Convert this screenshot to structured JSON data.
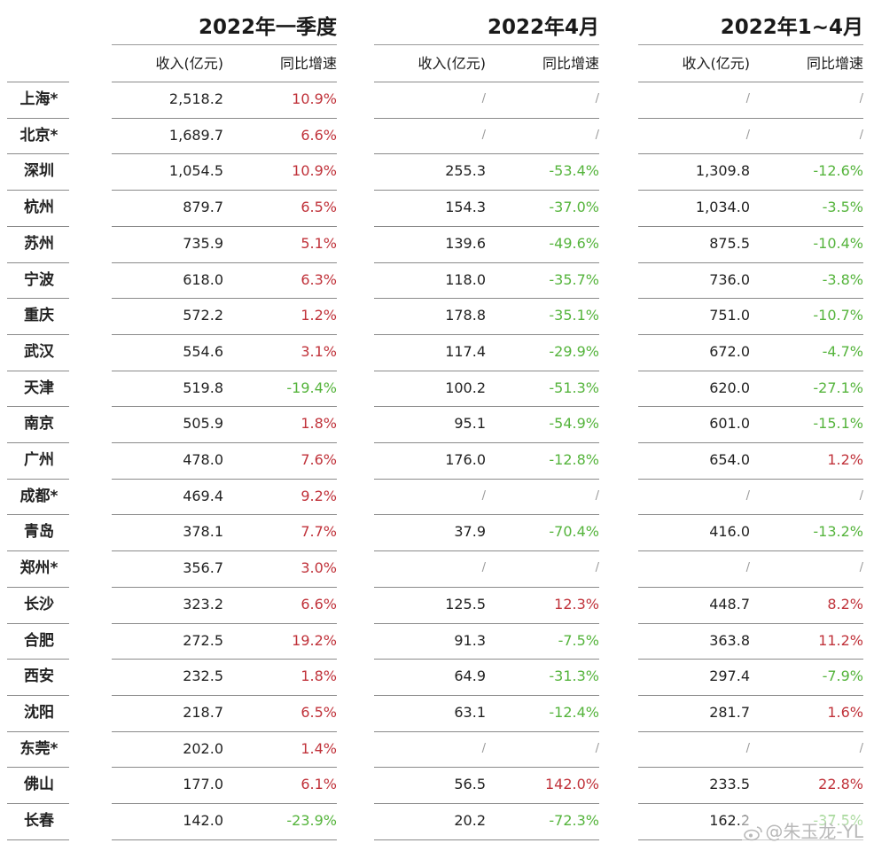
{
  "groups": [
    {
      "title": "2022年一季度",
      "col_income": "收入(亿元)",
      "col_growth": "同比增速"
    },
    {
      "title": "2022年4月",
      "col_income": "收入(亿元)",
      "col_growth": "同比增速"
    },
    {
      "title": "2022年1~4月",
      "col_income": "收入(亿元)",
      "col_growth": "同比增速"
    }
  ],
  "rows": [
    {
      "city": "上海*",
      "cells": [
        "2,518.2",
        "10.9%",
        "/",
        "/",
        "/",
        "/"
      ]
    },
    {
      "city": "北京*",
      "cells": [
        "1,689.7",
        "6.6%",
        "/",
        "/",
        "/",
        "/"
      ]
    },
    {
      "city": "深圳",
      "cells": [
        "1,054.5",
        "10.9%",
        "255.3",
        "-53.4%",
        "1,309.8",
        "-12.6%"
      ]
    },
    {
      "city": "杭州",
      "cells": [
        "879.7",
        "6.5%",
        "154.3",
        "-37.0%",
        "1,034.0",
        "-3.5%"
      ]
    },
    {
      "city": "苏州",
      "cells": [
        "735.9",
        "5.1%",
        "139.6",
        "-49.6%",
        "875.5",
        "-10.4%"
      ]
    },
    {
      "city": "宁波",
      "cells": [
        "618.0",
        "6.3%",
        "118.0",
        "-35.7%",
        "736.0",
        "-3.8%"
      ]
    },
    {
      "city": "重庆",
      "cells": [
        "572.2",
        "1.2%",
        "178.8",
        "-35.1%",
        "751.0",
        "-10.7%"
      ]
    },
    {
      "city": "武汉",
      "cells": [
        "554.6",
        "3.1%",
        "117.4",
        "-29.9%",
        "672.0",
        "-4.7%"
      ]
    },
    {
      "city": "天津",
      "cells": [
        "519.8",
        "-19.4%",
        "100.2",
        "-51.3%",
        "620.0",
        "-27.1%"
      ]
    },
    {
      "city": "南京",
      "cells": [
        "505.9",
        "1.8%",
        "95.1",
        "-54.9%",
        "601.0",
        "-15.1%"
      ]
    },
    {
      "city": "广州",
      "cells": [
        "478.0",
        "7.6%",
        "176.0",
        "-12.8%",
        "654.0",
        "1.2%"
      ]
    },
    {
      "city": "成都*",
      "cells": [
        "469.4",
        "9.2%",
        "/",
        "/",
        "/",
        "/"
      ]
    },
    {
      "city": "青岛",
      "cells": [
        "378.1",
        "7.7%",
        "37.9",
        "-70.4%",
        "416.0",
        "-13.2%"
      ]
    },
    {
      "city": "郑州*",
      "cells": [
        "356.7",
        "3.0%",
        "/",
        "/",
        "/",
        "/"
      ]
    },
    {
      "city": "长沙",
      "cells": [
        "323.2",
        "6.6%",
        "125.5",
        "12.3%",
        "448.7",
        "8.2%"
      ]
    },
    {
      "city": "合肥",
      "cells": [
        "272.5",
        "19.2%",
        "91.3",
        "-7.5%",
        "363.8",
        "11.2%"
      ]
    },
    {
      "city": "西安",
      "cells": [
        "232.5",
        "1.8%",
        "64.9",
        "-31.3%",
        "297.4",
        "-7.9%"
      ]
    },
    {
      "city": "沈阳",
      "cells": [
        "218.7",
        "6.5%",
        "63.1",
        "-12.4%",
        "281.7",
        "1.6%"
      ]
    },
    {
      "city": "东莞*",
      "cells": [
        "202.0",
        "1.4%",
        "/",
        "/",
        "/",
        "/"
      ]
    },
    {
      "city": "佛山",
      "cells": [
        "177.0",
        "6.1%",
        "56.5",
        "142.0%",
        "233.5",
        "22.8%"
      ]
    },
    {
      "city": "长春",
      "cells": [
        "142.0",
        "-23.9%",
        "20.2",
        "-72.3%",
        "162.2",
        "-37.5%"
      ]
    }
  ],
  "colors": {
    "positive": "#c0323a",
    "negative": "#55b43c",
    "neutral": "#222222"
  },
  "watermark": {
    "text": "@朱玉龙-YL",
    "icon": "weibo-icon"
  }
}
